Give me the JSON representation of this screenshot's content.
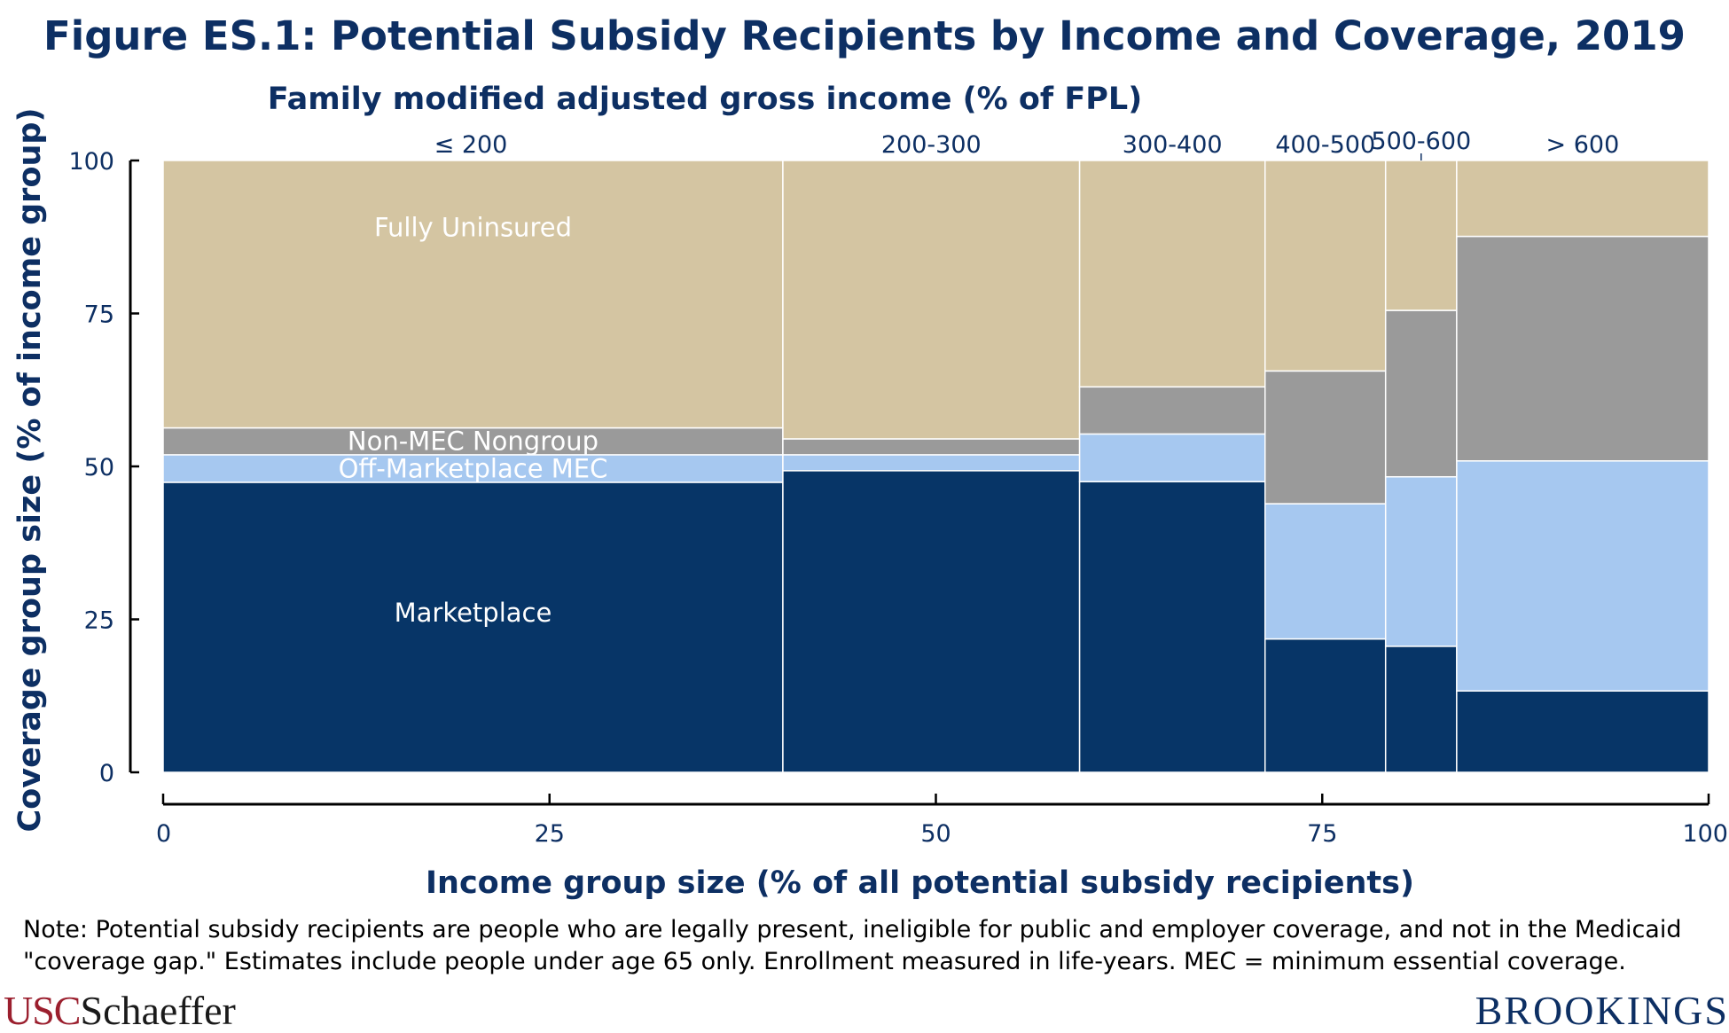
{
  "title": "Figure ES.1: Potential Subsidy Recipients by Income and Coverage, 2019",
  "chart_data": {
    "type": "mosaic",
    "title": "Figure ES.1: Potential Subsidy Recipients by Income and Coverage, 2019",
    "top_axis_label": "Family modified adjusted gross income (% of FPL)",
    "xlabel": "Income group size (% of all potential subsidy recipients)",
    "ylabel": "Coverage group size (% of income group)",
    "xlim": [
      0,
      100
    ],
    "ylim": [
      0,
      100
    ],
    "x_ticks": [
      0,
      25,
      50,
      75,
      100
    ],
    "y_ticks": [
      0,
      25,
      50,
      75,
      100
    ],
    "categories": [
      "≤ 200",
      "200-300",
      "300-400",
      "400-500",
      "500-600",
      "> 600"
    ],
    "widths": [
      40.1,
      19.2,
      12.0,
      7.8,
      4.6,
      16.3
    ],
    "series": [
      {
        "name": "Marketplace",
        "color": "#073567",
        "label_color": "#ffffff",
        "values": [
          47.4,
          49.3,
          47.5,
          21.8,
          20.6,
          13.3
        ]
      },
      {
        "name": "Off-Marketplace MEC",
        "color": "#a6c8f0",
        "label_color": "#ffffff",
        "values": [
          4.5,
          2.6,
          7.8,
          22.1,
          27.7,
          37.6
        ]
      },
      {
        "name": "Non-MEC Nongroup",
        "color": "#9a9a9a",
        "label_color": "#ffffff",
        "values": [
          4.4,
          2.6,
          7.7,
          21.7,
          27.2,
          36.7
        ]
      },
      {
        "name": "Fully Uninsured",
        "color": "#d4c5a2",
        "label_color": "#ffffff",
        "values": [
          43.7,
          45.5,
          37.0,
          34.4,
          24.5,
          12.4
        ]
      }
    ],
    "colors": {
      "text": "#0d2f63",
      "axis": "#000000",
      "separator": "#ffffff"
    }
  },
  "note_lines": [
    "Note: Potential subsidy recipients are people who are legally present, ineligible for public and employer coverage, and not in the Medicaid",
    "\"coverage gap.\" Estimates include people under age 65 only. Enrollment measured in life-years. MEC = minimum essential coverage."
  ],
  "logos": {
    "usc_part1": "USC",
    "usc_part2": "Schaeffer",
    "brookings": "BROOKINGS"
  }
}
